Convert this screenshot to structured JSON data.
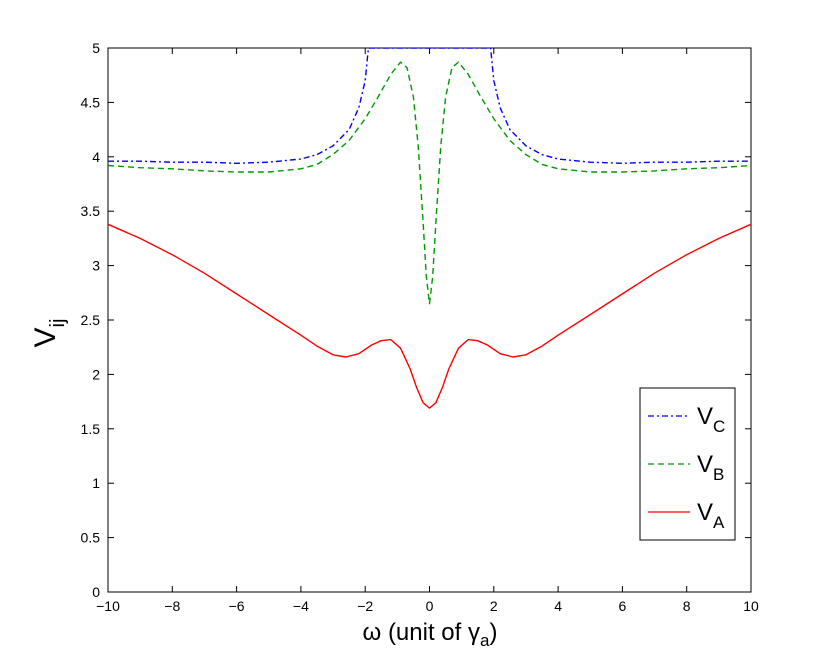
{
  "chart_data": {
    "type": "line",
    "xlabel": {
      "main": "ω (unit of γ",
      "sub": "a",
      "close": ")"
    },
    "ylabel": {
      "main": "V",
      "sub": "ij"
    },
    "xlim": [
      -10,
      10
    ],
    "ylim": [
      0,
      5
    ],
    "xticks": [
      -10,
      -8,
      -6,
      -4,
      -2,
      0,
      2,
      4,
      6,
      8,
      10
    ],
    "yticks": [
      0,
      0.5,
      1,
      1.5,
      2,
      2.5,
      3,
      3.5,
      4,
      4.5,
      5
    ],
    "xtick_labels": [
      "−10",
      "−8",
      "−6",
      "−4",
      "−2",
      "0",
      "2",
      "4",
      "6",
      "8",
      "10"
    ],
    "ytick_labels": [
      "0",
      "0.5",
      "1",
      "1.5",
      "2",
      "2.5",
      "3",
      "3.5",
      "4",
      "4.5",
      "5"
    ],
    "grid": false,
    "legend_position": "bottom-right",
    "series": [
      {
        "name": "V",
        "name_sub": "C",
        "color": "#0000ff",
        "style": "dashdot",
        "x": [
          -10,
          -9,
          -8,
          -7,
          -6,
          -5,
          -4,
          -3.5,
          -3,
          -2.5,
          -2.2,
          -2.0,
          -1.9,
          1.9,
          2.0,
          2.2,
          2.5,
          3,
          3.5,
          4,
          5,
          6,
          7,
          8,
          9,
          10
        ],
        "y": [
          3.96,
          3.96,
          3.95,
          3.95,
          3.94,
          3.95,
          3.98,
          4.02,
          4.1,
          4.25,
          4.45,
          4.7,
          5.0,
          5.0,
          4.7,
          4.45,
          4.25,
          4.1,
          4.02,
          3.98,
          3.95,
          3.94,
          3.95,
          3.95,
          3.96,
          3.96
        ]
      },
      {
        "name": "V",
        "name_sub": "B",
        "color": "#009900",
        "style": "dashed",
        "x": [
          -10,
          -9,
          -8,
          -7,
          -6,
          -5,
          -4,
          -3.5,
          -3,
          -2.5,
          -2,
          -1.6,
          -1.2,
          -0.9,
          -0.7,
          -0.5,
          -0.35,
          -0.2,
          -0.1,
          0,
          0.1,
          0.2,
          0.35,
          0.5,
          0.7,
          0.9,
          1.2,
          1.6,
          2,
          2.5,
          3,
          3.5,
          4,
          5,
          6,
          7,
          8,
          9,
          10
        ],
        "y": [
          3.92,
          3.9,
          3.89,
          3.87,
          3.86,
          3.86,
          3.89,
          3.93,
          4.02,
          4.15,
          4.35,
          4.55,
          4.76,
          4.87,
          4.82,
          4.55,
          4.1,
          3.4,
          2.9,
          2.65,
          2.9,
          3.4,
          4.1,
          4.55,
          4.82,
          4.87,
          4.76,
          4.55,
          4.35,
          4.15,
          4.02,
          3.93,
          3.89,
          3.86,
          3.86,
          3.87,
          3.89,
          3.9,
          3.92
        ]
      },
      {
        "name": "V",
        "name_sub": "A",
        "color": "#ff0000",
        "style": "solid",
        "x": [
          -10,
          -9,
          -8,
          -7,
          -6,
          -5,
          -4,
          -3.5,
          -3,
          -2.6,
          -2.2,
          -1.8,
          -1.5,
          -1.2,
          -0.9,
          -0.6,
          -0.4,
          -0.2,
          0,
          0.2,
          0.4,
          0.6,
          0.9,
          1.2,
          1.5,
          1.8,
          2.2,
          2.6,
          3,
          3.5,
          4,
          5,
          6,
          7,
          8,
          9,
          10
        ],
        "y": [
          3.38,
          3.25,
          3.1,
          2.93,
          2.74,
          2.55,
          2.36,
          2.26,
          2.18,
          2.16,
          2.19,
          2.27,
          2.31,
          2.32,
          2.24,
          2.05,
          1.88,
          1.74,
          1.69,
          1.74,
          1.88,
          2.05,
          2.24,
          2.32,
          2.31,
          2.27,
          2.19,
          2.16,
          2.18,
          2.26,
          2.36,
          2.55,
          2.74,
          2.93,
          3.1,
          3.25,
          3.38
        ]
      }
    ]
  }
}
